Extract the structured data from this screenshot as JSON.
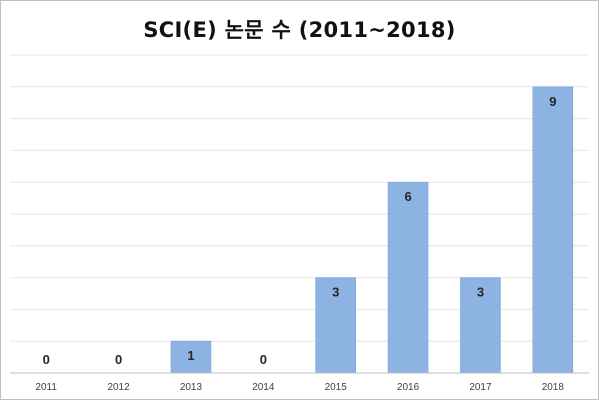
{
  "chart_data": {
    "type": "bar",
    "title": "SCI(E) 논문 수 (2011~2018)",
    "categories": [
      "2011",
      "2012",
      "2013",
      "2014",
      "2015",
      "2016",
      "2017",
      "2018"
    ],
    "values": [
      0,
      0,
      1,
      0,
      3,
      6,
      3,
      9
    ],
    "ylim": [
      0,
      10
    ],
    "grid": true,
    "legend": "none",
    "bar_color": "#8db3e2",
    "bar_edge_color": "#7ba3d6",
    "grid_color": "#e6e6e6"
  }
}
